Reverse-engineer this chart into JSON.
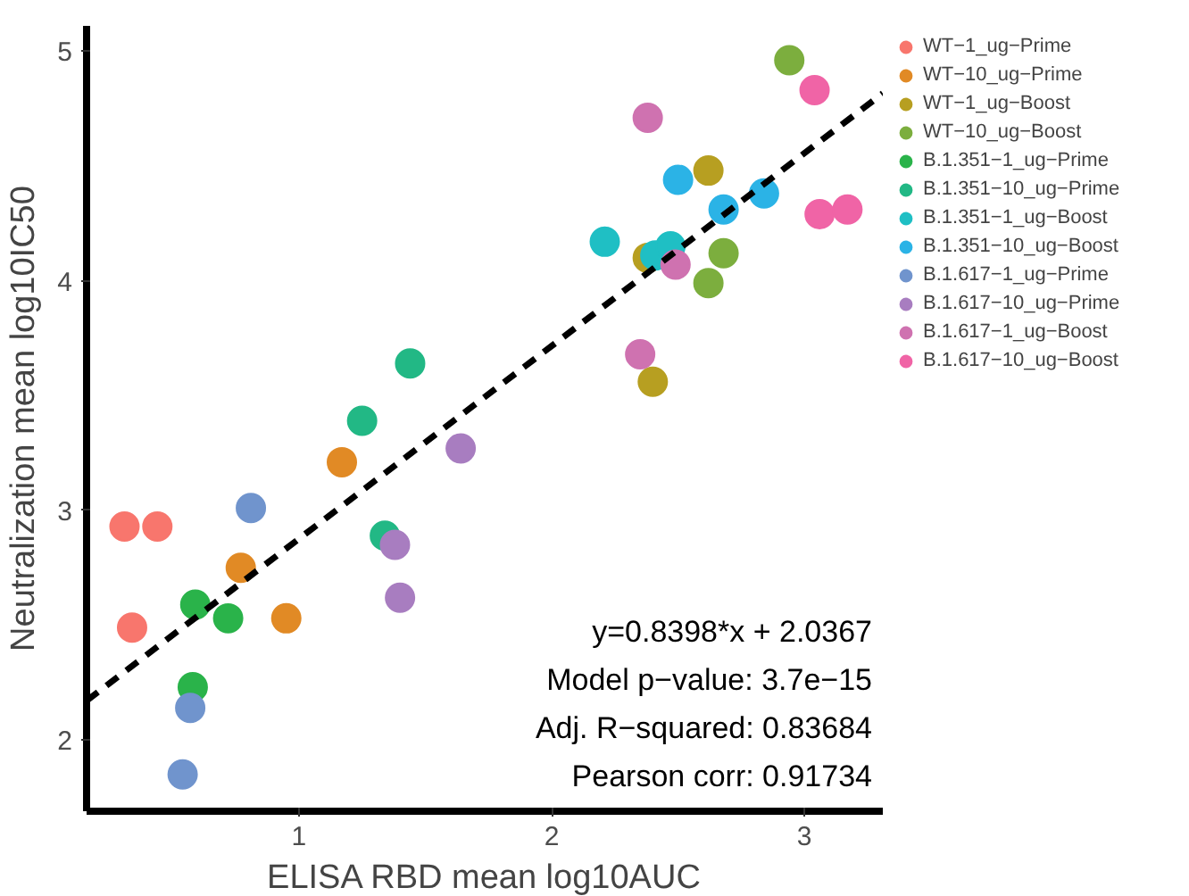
{
  "chart_data": {
    "type": "scatter",
    "xlabel": "ELISA RBD mean log10AUC",
    "ylabel": "Neutralization mean log10IC50",
    "xlim": [
      0.16,
      3.31
    ],
    "ylim": [
      1.69,
      5.11
    ],
    "xticks": [
      1,
      2,
      3
    ],
    "yticks": [
      2,
      3,
      4,
      5
    ],
    "grid": false,
    "legend": "right",
    "marker": "circle",
    "annotations": [
      "y=0.8398*x + 2.0367",
      "Model p−value: 3.7e−15",
      "Adj. R−squared: 0.83684",
      "Pearson corr: 0.91734"
    ],
    "series": [
      {
        "name": "WT−1_ug−Prime",
        "color": "#f8766d",
        "x": [
          0.31,
          0.44,
          0.34
        ],
        "values": [
          2.93,
          2.93,
          2.49
        ]
      },
      {
        "name": "WT−10_ug−Prime",
        "color": "#e18a25",
        "x": [
          1.17,
          0.77,
          0.95
        ],
        "values": [
          3.21,
          2.75,
          2.53
        ]
      },
      {
        "name": "WT−1_ug−Boost",
        "color": "#b79f21",
        "x": [
          2.38,
          2.62,
          2.4
        ],
        "values": [
          4.1,
          4.48,
          3.56
        ]
      },
      {
        "name": "WT−10_ug−Boost",
        "color": "#7cae3e",
        "x": [
          2.94,
          2.68,
          2.62
        ],
        "values": [
          4.96,
          4.12,
          3.99
        ]
      },
      {
        "name": "B.1.351−1_ug−Prime",
        "color": "#2ab34a",
        "x": [
          0.59,
          0.72,
          0.58
        ],
        "values": [
          2.59,
          2.53,
          2.23
        ]
      },
      {
        "name": "B.1.351−10_ug−Prime",
        "color": "#22b885",
        "x": [
          1.44,
          1.25,
          1.34
        ],
        "values": [
          3.64,
          3.39,
          2.89
        ]
      },
      {
        "name": "B.1.351−1_ug−Boost",
        "color": "#1fbfc4",
        "x": [
          2.21,
          2.41,
          2.47
        ],
        "values": [
          4.17,
          4.11,
          4.15
        ]
      },
      {
        "name": "B.1.351−10_ug−Boost",
        "color": "#2bb3e6",
        "x": [
          2.5,
          2.68,
          2.84
        ],
        "values": [
          4.44,
          4.31,
          4.38
        ]
      },
      {
        "name": "B.1.617−1_ug−Prime",
        "color": "#7094cd",
        "x": [
          0.81,
          0.57,
          0.54
        ],
        "values": [
          3.01,
          2.14,
          1.85
        ]
      },
      {
        "name": "B.1.617−10_ug−Prime",
        "color": "#a87dc0",
        "x": [
          1.64,
          1.38,
          1.4
        ],
        "values": [
          3.27,
          2.85,
          2.62
        ]
      },
      {
        "name": "B.1.617−1_ug−Boost",
        "color": "#cf72b0",
        "x": [
          2.38,
          2.49,
          2.35
        ],
        "values": [
          4.71,
          4.07,
          3.68
        ]
      },
      {
        "name": "B.1.617−10_ug−Boost",
        "color": "#f064a6",
        "x": [
          3.04,
          3.06,
          3.17
        ],
        "values": [
          4.83,
          4.29,
          4.31
        ]
      },
      {
        "type": "line",
        "color": "#000000",
        "line_style": "dashed",
        "marker": "none",
        "x": [
          0.16,
          3.31
        ],
        "values": [
          2.171,
          4.816
        ]
      }
    ]
  }
}
